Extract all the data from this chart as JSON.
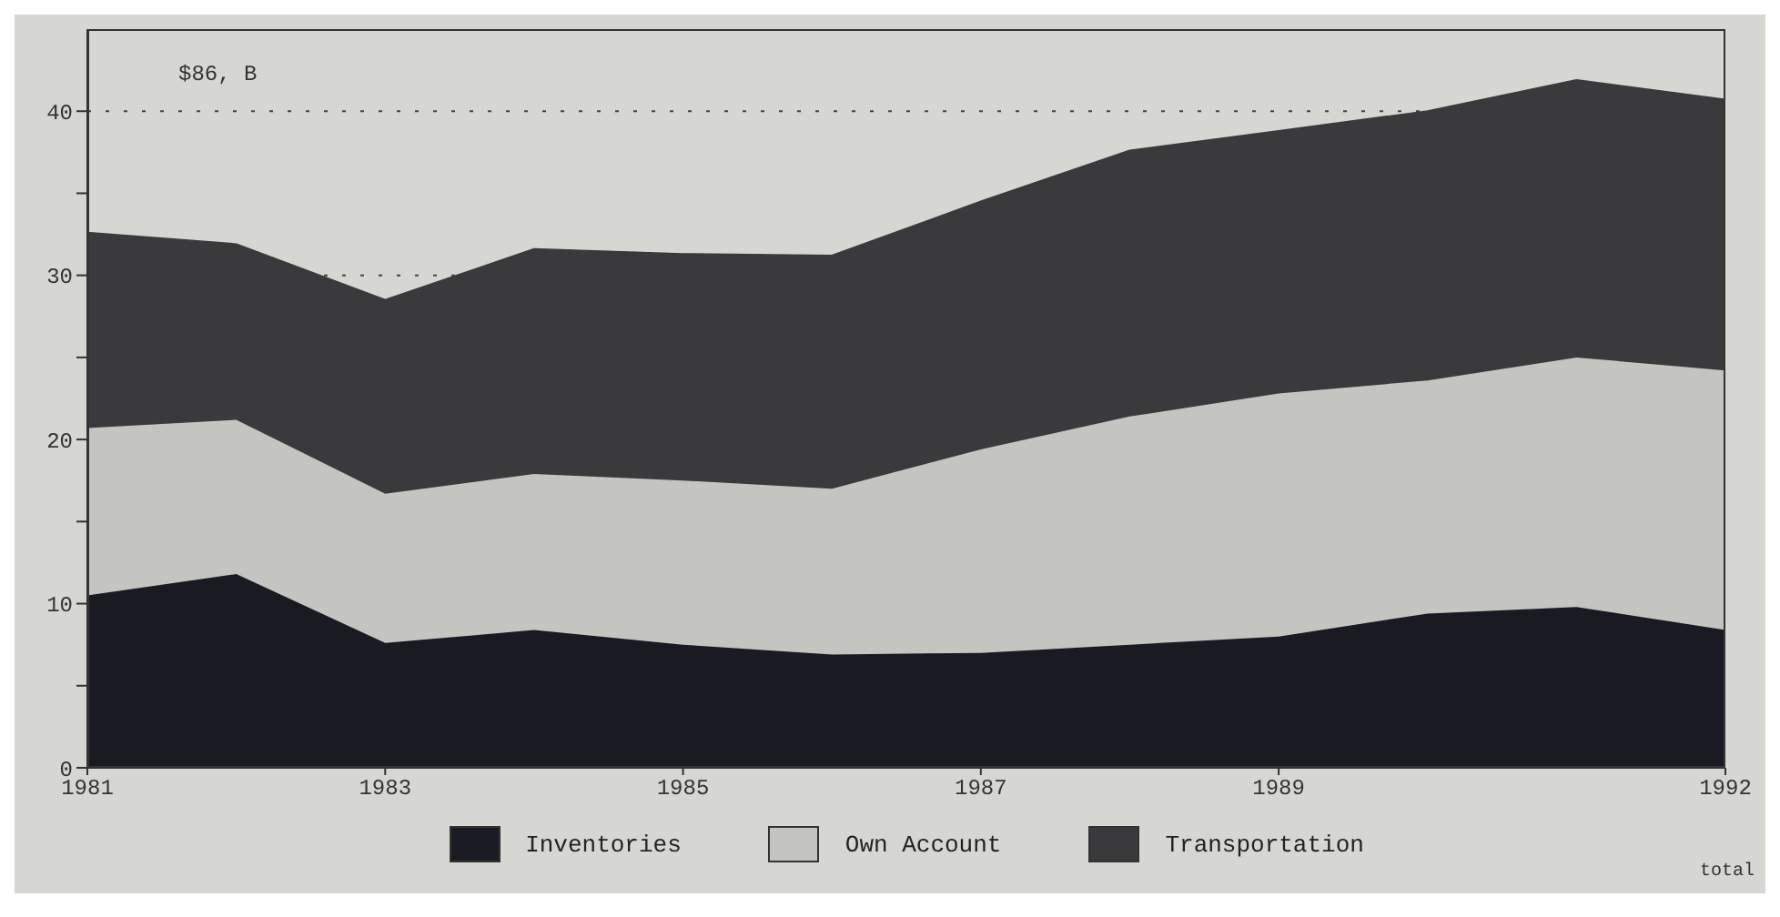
{
  "chart_data": {
    "type": "area",
    "stacked": true,
    "x": [
      1981,
      1982,
      1983,
      1984,
      1985,
      1986,
      1987,
      1988,
      1989,
      1990,
      1991,
      1992
    ],
    "series": [
      {
        "name": "Inventories",
        "color": "#1a1a22",
        "values": [
          10.5,
          11.8,
          7.6,
          8.4,
          7.5,
          6.9,
          7.0,
          7.5,
          8.0,
          9.4,
          9.8,
          8.4
        ]
      },
      {
        "name": "Own Account",
        "color": "#c4c4c0",
        "values": [
          10.2,
          9.4,
          9.1,
          9.5,
          10.0,
          10.1,
          12.4,
          13.9,
          14.8,
          14.2,
          15.2,
          15.8
        ]
      },
      {
        "name": "Transportation",
        "color": "#3a3a3c",
        "values": [
          11.9,
          10.7,
          11.8,
          13.7,
          13.8,
          14.2,
          15.1,
          16.2,
          16.0,
          16.4,
          16.9,
          16.5
        ]
      }
    ],
    "xlim": [
      1981,
      1992
    ],
    "xticks": [
      1981,
      1983,
      1985,
      1987,
      1989,
      1992
    ],
    "ylim": [
      0,
      45
    ],
    "yticks": [
      0,
      {
        "value": 5,
        "label": null
      },
      10,
      {
        "value": 15,
        "label": null
      },
      20,
      {
        "value": 25,
        "label": null
      },
      30,
      {
        "value": 35,
        "label": null
      },
      40
    ],
    "grid": "y",
    "legend": "bottom",
    "line_style": "solid",
    "annotations": [
      "$86, B",
      "total"
    ]
  }
}
